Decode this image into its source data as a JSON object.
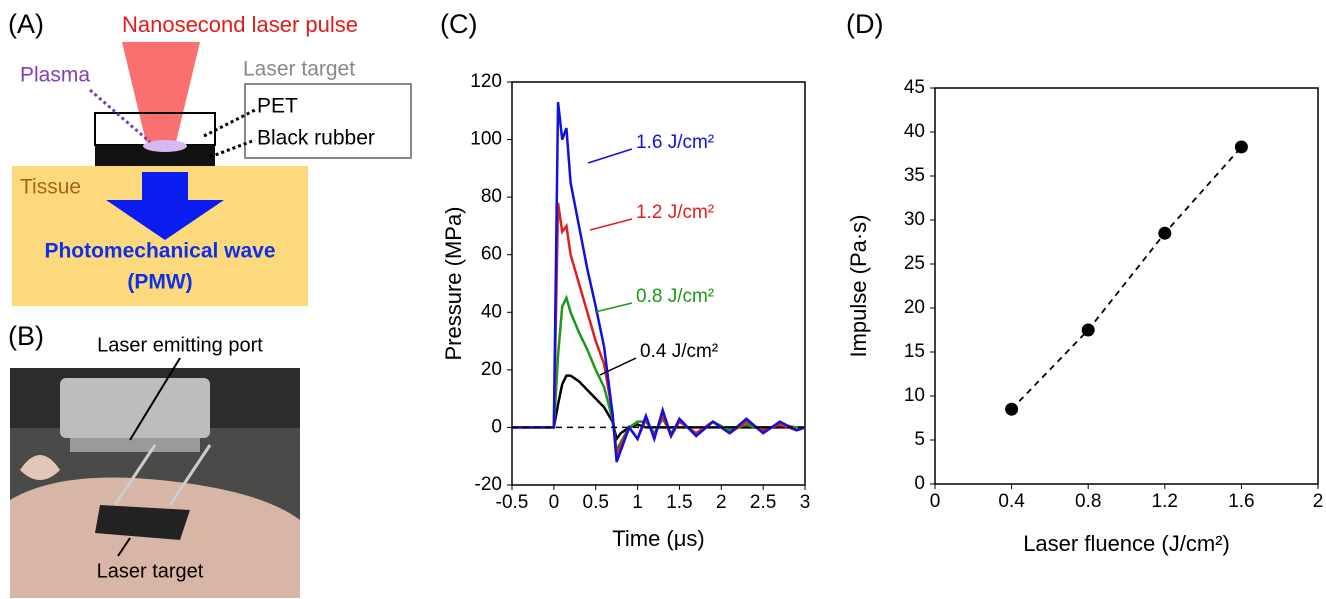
{
  "panel_a": {
    "label": "(A)",
    "laser": "Nanosecond laser pulse",
    "plasma": "Plasma",
    "target_title": "Laser target",
    "pet": "PET",
    "rubber": "Black rubber",
    "tissue": "Tissue",
    "wave": "Photomechanical wave",
    "wave_abbr": "(PMW)"
  },
  "panel_b": {
    "label": "(B)",
    "port": "Laser emitting port",
    "target": "Laser target"
  },
  "chart_data": [
    {
      "type": "line",
      "panel_label": "(C)",
      "x_label": "Time (μs)",
      "y_label": "Pressure (MPa)",
      "x": [
        -0.5,
        -0.3,
        -0.1,
        0,
        0.05,
        0.1,
        0.15,
        0.2,
        0.3,
        0.4,
        0.5,
        0.6,
        0.7,
        0.75,
        0.8,
        0.9,
        1.0,
        1.1,
        1.2,
        1.3,
        1.4,
        1.5,
        1.7,
        1.9,
        2.1,
        2.3,
        2.5,
        2.7,
        2.9,
        3.0
      ],
      "series": [
        {
          "name": "1.6 J/cm²",
          "color": "#1010e0",
          "values": [
            0,
            0,
            0,
            0,
            113,
            100,
            104,
            85,
            70,
            55,
            42,
            28,
            5,
            -12,
            -8,
            0,
            -4,
            4,
            -4,
            6,
            -3,
            3,
            -3,
            2,
            -2,
            3,
            -2,
            2,
            -1,
            0
          ]
        },
        {
          "name": "1.2 J/cm²",
          "color": "#e02020",
          "values": [
            0,
            0,
            0,
            0,
            78,
            68,
            70,
            60,
            50,
            40,
            30,
            22,
            5,
            -10,
            -6,
            0,
            -4,
            3,
            -3,
            4,
            -3,
            2,
            -2,
            2,
            -2,
            2,
            -1,
            1,
            -1,
            0
          ]
        },
        {
          "name": "0.8 J/cm²",
          "color": "#1a9a1a",
          "values": [
            0,
            0,
            0,
            0,
            25,
            42,
            45,
            40,
            33,
            27,
            20,
            14,
            3,
            -8,
            -5,
            0,
            2,
            2,
            -2,
            3,
            -2,
            2,
            -2,
            2,
            -1,
            1,
            -1,
            1,
            0,
            0
          ]
        },
        {
          "name": "0.4 J/cm²",
          "color": "#000000",
          "values": [
            0,
            0,
            0,
            0,
            8,
            15,
            18,
            18,
            16,
            13,
            10,
            7,
            2,
            -4,
            -2,
            0,
            1,
            0,
            0,
            0,
            0,
            0,
            0,
            0,
            0,
            0,
            0,
            0,
            0,
            0
          ]
        }
      ],
      "reference_line": 0,
      "xlim": [
        -0.5,
        3
      ],
      "xticks": [
        -0.5,
        0,
        0.5,
        1,
        1.5,
        2,
        2.5,
        3
      ],
      "ylim": [
        -20,
        120
      ],
      "yticks": [
        -20,
        0,
        20,
        40,
        60,
        80,
        100,
        120
      ]
    },
    {
      "type": "scatter",
      "panel_label": "(D)",
      "x_label": "Laser fluence (J/cm²)",
      "y_label": "Impulse (Pa·s)",
      "x": [
        0.4,
        0.8,
        1.2,
        1.6
      ],
      "values": [
        8.5,
        17.5,
        28.5,
        38.3
      ],
      "color": "#000000",
      "line_style": "dashed",
      "xlim": [
        0,
        2
      ],
      "xticks": [
        0,
        0.4,
        0.8,
        1.2,
        1.6,
        2
      ],
      "ylim": [
        0,
        45
      ],
      "yticks": [
        0,
        5,
        10,
        15,
        20,
        25,
        30,
        35,
        40,
        45
      ]
    }
  ]
}
